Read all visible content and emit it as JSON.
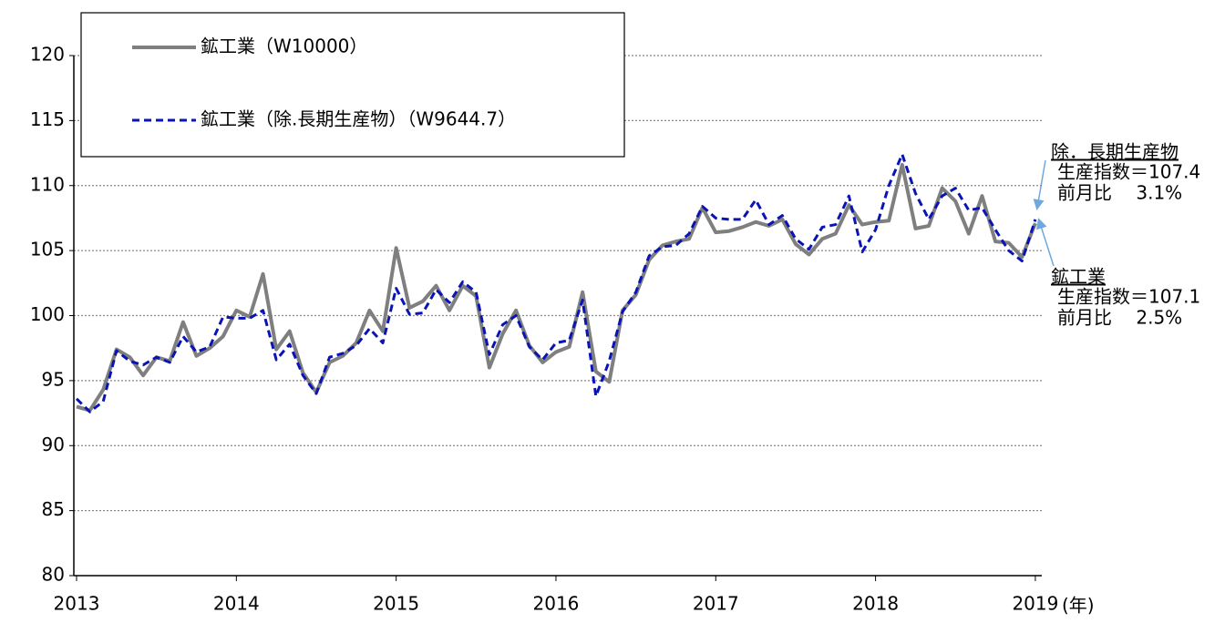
{
  "chart_data": {
    "type": "line",
    "categories": [
      "2013",
      null,
      null,
      null,
      null,
      null,
      null,
      null,
      null,
      null,
      null,
      null,
      "2014",
      null,
      null,
      null,
      null,
      null,
      null,
      null,
      null,
      null,
      null,
      null,
      "2015",
      null,
      null,
      null,
      null,
      null,
      null,
      null,
      null,
      null,
      null,
      null,
      "2016",
      null,
      null,
      null,
      null,
      null,
      null,
      null,
      null,
      null,
      null,
      null,
      "2017",
      null,
      null,
      null,
      null,
      null,
      null,
      null,
      null,
      null,
      null,
      null,
      "2018",
      null,
      null,
      null,
      null,
      null,
      null,
      null,
      null,
      null,
      null,
      null,
      "2019"
    ],
    "x_label": "(年)",
    "series": [
      {
        "name": "鉱工業（W10000）",
        "color": "#7f7f7f",
        "dash": false,
        "values": [
          93.0,
          92.7,
          94.3,
          97.4,
          96.8,
          95.4,
          96.8,
          96.5,
          99.5,
          96.9,
          97.5,
          98.4,
          100.4,
          99.9,
          103.2,
          97.4,
          98.8,
          95.6,
          94.1,
          96.4,
          96.9,
          97.9,
          100.4,
          98.8,
          105.2,
          100.6,
          101.1,
          102.3,
          100.4,
          102.3,
          101.5,
          96.0,
          98.6,
          100.4,
          97.7,
          96.4,
          97.2,
          97.6,
          101.8,
          95.7,
          94.9,
          100.4,
          101.6,
          104.3,
          105.4,
          105.7,
          105.9,
          108.3,
          106.4,
          106.5,
          106.8,
          107.2,
          106.9,
          107.4,
          105.5,
          104.7,
          105.9,
          106.3,
          108.5,
          107.0,
          107.2,
          107.3,
          111.6,
          106.7,
          106.9,
          109.8,
          108.8,
          106.3,
          109.2,
          105.7,
          105.6,
          104.5,
          107.1
        ]
      },
      {
        "name": "鉱工業（除.長期生産物）（W9644.7）",
        "color": "#0a14b4",
        "dash": true,
        "values": [
          93.6,
          92.6,
          93.4,
          97.3,
          96.5,
          96.2,
          96.8,
          96.4,
          98.4,
          97.2,
          97.6,
          99.9,
          99.8,
          99.8,
          100.4,
          96.6,
          97.8,
          95.4,
          94.0,
          96.8,
          97.1,
          97.7,
          99.0,
          97.9,
          102.1,
          100.1,
          100.2,
          102.0,
          101.0,
          102.6,
          101.8,
          97.0,
          99.3,
          100.0,
          97.6,
          96.6,
          97.9,
          98.1,
          101.2,
          93.8,
          96.5,
          100.3,
          101.8,
          104.6,
          105.3,
          105.4,
          106.3,
          108.4,
          107.5,
          107.4,
          107.4,
          108.9,
          107.0,
          107.7,
          105.9,
          105.1,
          106.8,
          107.0,
          109.2,
          104.9,
          106.6,
          110.0,
          112.4,
          109.4,
          107.4,
          109.2,
          109.8,
          108.1,
          108.3,
          106.6,
          105.0,
          104.2,
          107.4
        ]
      }
    ],
    "ylim": [
      80,
      120
    ],
    "yticks": [
      80,
      85,
      90,
      95,
      100,
      105,
      110,
      115,
      120
    ],
    "grid": true,
    "annotations": [
      {
        "title": "除．長期生産物",
        "lines": [
          "生産指数＝107.4",
          "前月比　 3.1%"
        ]
      },
      {
        "title": "鉱工業",
        "lines": [
          "生産指数＝107.1",
          "前月比　 2.5%"
        ]
      }
    ]
  }
}
